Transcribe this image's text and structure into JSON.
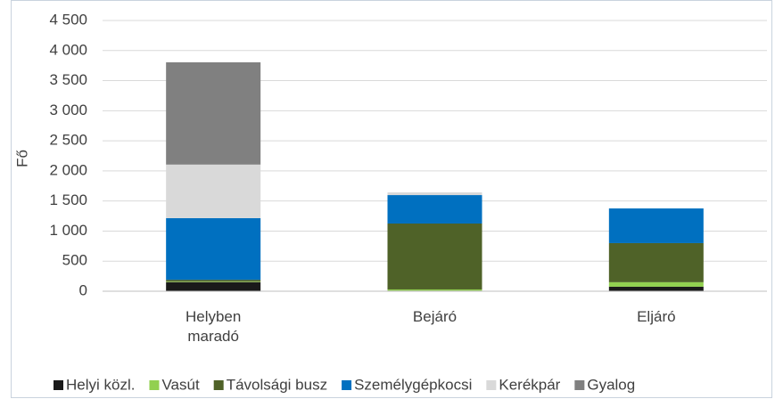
{
  "chart_data": {
    "type": "stacked_bar",
    "y_label": "Fő",
    "categories": [
      "Helyben maradó",
      "Bejáró",
      "Eljáró"
    ],
    "series": [
      {
        "name": "Helyi közl.",
        "color": "#1a1a1a",
        "values": [
          150,
          10,
          75
        ]
      },
      {
        "name": "Vasút",
        "color": "#92d050",
        "values": [
          10,
          20,
          75
        ]
      },
      {
        "name": "Távolsági busz",
        "color": "#4f6228",
        "values": [
          30,
          1095,
          650
        ]
      },
      {
        "name": "Személygépkocsi",
        "color": "#0070c0",
        "values": [
          1025,
          473,
          576
        ]
      },
      {
        "name": "Kerékpár",
        "color": "#d9d9d9",
        "values": [
          890,
          45,
          0
        ]
      },
      {
        "name": "Gyalog",
        "color": "#808080",
        "values": [
          1700,
          0,
          0
        ]
      }
    ],
    "ylim": [
      0,
      4500
    ],
    "yticks": [
      0,
      500,
      {
        "value": 1000,
        "label": "1 000"
      },
      {
        "value": 1500,
        "label": "1 500"
      },
      {
        "value": 2000,
        "label": "2 000"
      },
      {
        "value": 2500,
        "label": "2 500"
      },
      {
        "value": 3000,
        "label": "3 000"
      },
      {
        "value": 3500,
        "label": "3 500"
      },
      {
        "value": 4000,
        "label": "4 000"
      },
      {
        "value": 4500,
        "label": "4 500"
      }
    ],
    "grid": true,
    "legend": "bottom"
  }
}
